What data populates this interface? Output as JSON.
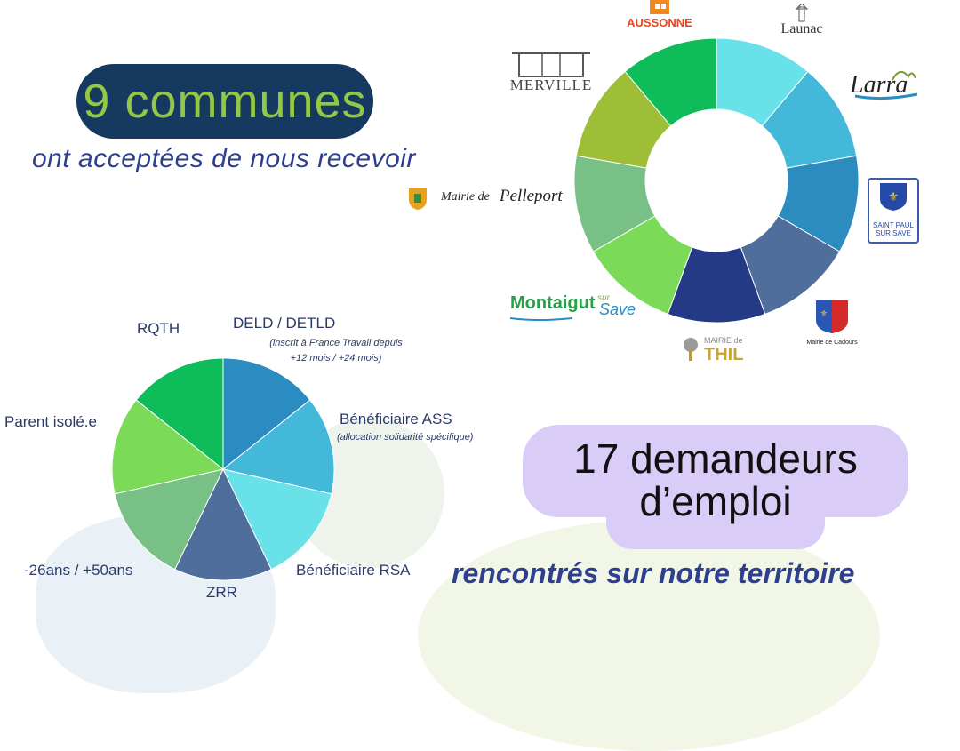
{
  "headline_communes": {
    "number_text": "9 communes",
    "subtitle": "ont acceptées de nous recevoir"
  },
  "headline_demandeurs": {
    "line1": "17 demandeurs",
    "line2": "d’emploi",
    "subtitle": "rencontrés sur notre territoire"
  },
  "logos": {
    "aussonne": "AUSSONNE",
    "launac": "Launac",
    "lasserre": "Larra",
    "saint_paul_line1": "SAINT PAUL",
    "saint_paul_line2": "SUR SAVE",
    "cadours": "Mairie de Cadours",
    "thil_line1": "MAIRIE de",
    "thil_line2": "THIL",
    "montaigut": "Montaigut",
    "montaigut_sur": "sur",
    "montaigut_save": "Save",
    "pelleport_prefix": "Mairie de",
    "pelleport_name": "Pelleport",
    "merville": "MERVILLE"
  },
  "chart_data": [
    {
      "type": "pie",
      "variant": "donut",
      "categories": [
        "Launac",
        "Larra",
        "Saint Paul sur Save",
        "Mairie de Cadours",
        "Thil",
        "Montaigut sur Save",
        "Pelleport",
        "Merville",
        "Aussonne"
      ],
      "values": [
        1,
        1,
        1,
        1,
        1,
        1,
        1,
        1,
        1
      ],
      "colors": [
        "#68e2e8",
        "#43b8d9",
        "#2c8cc0",
        "#4f6e9b",
        "#243a86",
        "#7bdb59",
        "#79c087",
        "#9ebe37",
        "#0ebc5a"
      ]
    },
    {
      "type": "pie",
      "categories": [
        "DELD / DETLD",
        "Bénéficiaire ASS",
        "Bénéficiaire RSA",
        "ZRR",
        "-26ans / +50ans",
        "Parent isolé.e",
        "RQTH"
      ],
      "category_notes": {
        "DELD / DETLD": [
          "(inscrit à France Travail depuis",
          "+12 mois / +24 mois)"
        ],
        "Bénéficiaire ASS": [
          "(allocation solidarité spécifique)"
        ]
      },
      "values": [
        1,
        1,
        1,
        1,
        1,
        1,
        1
      ],
      "colors": [
        "#2a8cc1",
        "#43b8d9",
        "#68e2e8",
        "#4f6e9b",
        "#79c087",
        "#7bdb59",
        "#0ebc5a"
      ]
    }
  ]
}
